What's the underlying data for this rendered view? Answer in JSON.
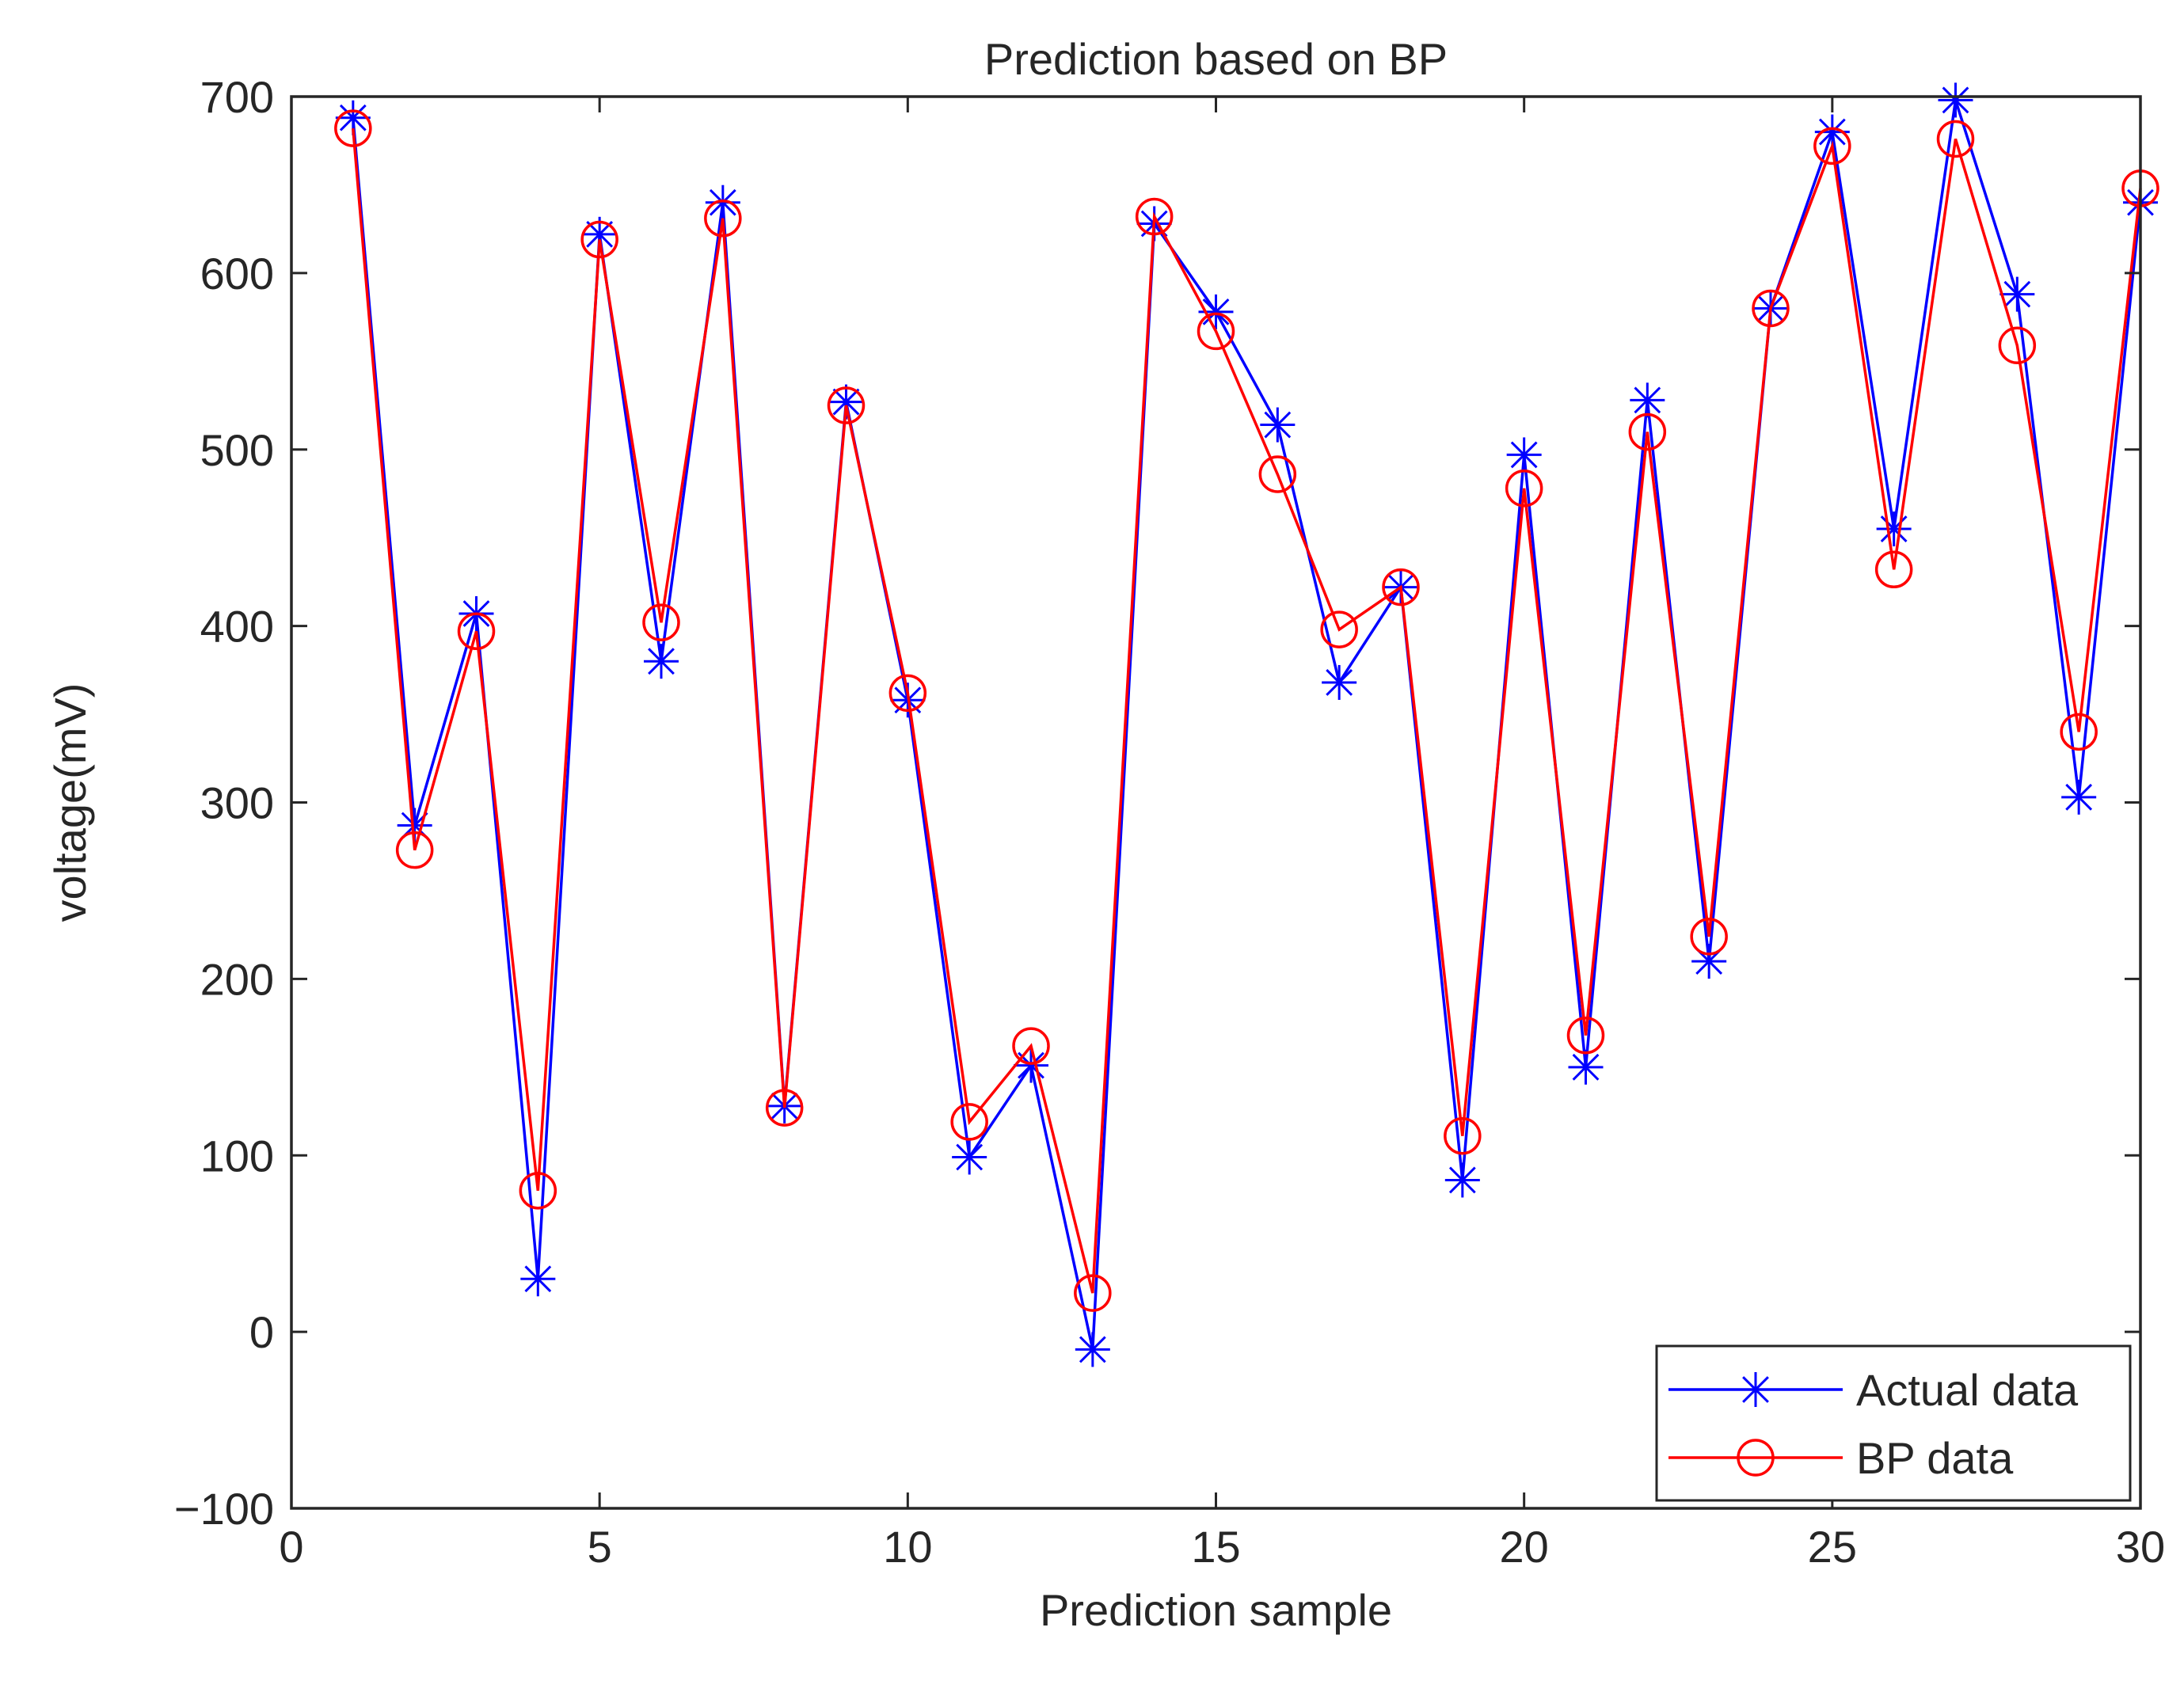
{
  "chart_data": {
    "type": "line",
    "title": "Prediction based on BP",
    "xlabel": "Prediction sample",
    "ylabel": "voltage(mV)",
    "xlim": [
      0,
      30
    ],
    "ylim": [
      -100,
      700
    ],
    "xticks": [
      0,
      5,
      10,
      15,
      20,
      25,
      30
    ],
    "xtick_labels": [
      "0",
      "5",
      "10",
      "15",
      "20",
      "25",
      "30"
    ],
    "yticks": [
      -100,
      0,
      100,
      200,
      300,
      400,
      500,
      600,
      700
    ],
    "ytick_labels": [
      "−100",
      "0",
      "100",
      "200",
      "300",
      "400",
      "500",
      "600",
      "700"
    ],
    "grid": false,
    "legend_position": "bottom-right",
    "x": [
      1,
      2,
      3,
      4,
      5,
      6,
      7,
      8,
      9,
      10,
      11,
      12,
      13,
      14,
      15,
      16,
      17,
      18,
      19,
      20,
      21,
      22,
      23,
      24,
      25,
      26,
      27,
      28,
      29,
      30
    ],
    "series": [
      {
        "name": "Actual data",
        "color": "#0000ff",
        "marker": "asterisk",
        "values": [
          688,
          287,
          407,
          30,
          622,
          380,
          640,
          128,
          527,
          358,
          99,
          151,
          -10,
          628,
          578,
          514,
          368,
          422,
          86,
          497,
          150,
          528,
          210,
          580,
          680,
          455,
          698,
          588,
          303,
          640
        ]
      },
      {
        "name": "BP data",
        "color": "#ff0000",
        "marker": "circle",
        "values": [
          682,
          273,
          397,
          80,
          619,
          402,
          631,
          127,
          525,
          362,
          119,
          162,
          22,
          632,
          567,
          486,
          398,
          422,
          111,
          478,
          168,
          510,
          224,
          580,
          672,
          432,
          676,
          559,
          340,
          648
        ]
      }
    ]
  }
}
